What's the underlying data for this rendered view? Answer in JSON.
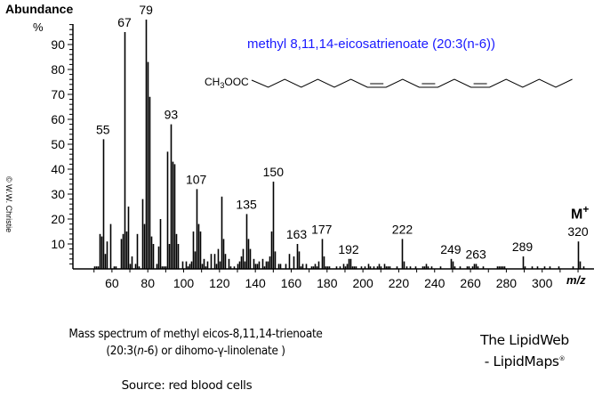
{
  "header": {
    "y_axis_title": "Abundance",
    "y_axis_unit": "%",
    "compound_name": "methyl 8,11,14-eicosatrienoate (20:3(n-6))",
    "structure_label": "CH3OOC",
    "copyright": "© W.W. Christie",
    "molecular_ion_label": "M",
    "molecular_ion_sup": "+"
  },
  "caption": {
    "line1": "Mass spectrum of methyl eicos-8,11,14-trienoate",
    "line2_pre": "(20:3(",
    "line2_italic": "n",
    "line2_post": "-6) or dihomo-γ-linolenate )",
    "source": "Source:  red blood cells"
  },
  "brand": {
    "line1": "The LipidWeb",
    "line2": "- LipidMaps",
    "mark": "®"
  },
  "colors": {
    "title": "#1a1aff",
    "peaks": "#000000"
  },
  "chart_data": {
    "type": "bar",
    "title": "methyl 8,11,14-eicosatrienoate (20:3(n-6))",
    "xlabel": "m/z",
    "ylabel": "Abundance %",
    "xlim": [
      40,
      330
    ],
    "ylim": [
      0,
      100
    ],
    "x_ticks": [
      60,
      80,
      100,
      120,
      140,
      160,
      180,
      200,
      220,
      240,
      260,
      280,
      300
    ],
    "y_ticks": [
      10,
      20,
      30,
      40,
      50,
      60,
      70,
      80,
      90
    ],
    "grid": false,
    "labeled_peaks": [
      55,
      67,
      79,
      93,
      107,
      135,
      150,
      163,
      177,
      192,
      222,
      249,
      263,
      289,
      320
    ],
    "peaks": [
      [
        50,
        1
      ],
      [
        51,
        1
      ],
      [
        52,
        1
      ],
      [
        53,
        14
      ],
      [
        54,
        13
      ],
      [
        55,
        52
      ],
      [
        56,
        6
      ],
      [
        57,
        11
      ],
      [
        59,
        18
      ],
      [
        61,
        1
      ],
      [
        62,
        1
      ],
      [
        65,
        12
      ],
      [
        66,
        14
      ],
      [
        67,
        95
      ],
      [
        68,
        15
      ],
      [
        69,
        25
      ],
      [
        70,
        2
      ],
      [
        71,
        5
      ],
      [
        73,
        2
      ],
      [
        74,
        14
      ],
      [
        75,
        1
      ],
      [
        77,
        28
      ],
      [
        78,
        18
      ],
      [
        79,
        100
      ],
      [
        80,
        83
      ],
      [
        81,
        69
      ],
      [
        82,
        13
      ],
      [
        83,
        10
      ],
      [
        85,
        2
      ],
      [
        86,
        9
      ],
      [
        87,
        20
      ],
      [
        88,
        1
      ],
      [
        89,
        1
      ],
      [
        90,
        1
      ],
      [
        91,
        47
      ],
      [
        92,
        10
      ],
      [
        93,
        58
      ],
      [
        94,
        43
      ],
      [
        95,
        42
      ],
      [
        96,
        14
      ],
      [
        97,
        10
      ],
      [
        99,
        3
      ],
      [
        101,
        3
      ],
      [
        102,
        1
      ],
      [
        103,
        2
      ],
      [
        104,
        3
      ],
      [
        105,
        15
      ],
      [
        106,
        7
      ],
      [
        107,
        32
      ],
      [
        108,
        18
      ],
      [
        109,
        15
      ],
      [
        110,
        2
      ],
      [
        111,
        4
      ],
      [
        112,
        1
      ],
      [
        113,
        3
      ],
      [
        115,
        6
      ],
      [
        117,
        6
      ],
      [
        118,
        2
      ],
      [
        119,
        8
      ],
      [
        120,
        3
      ],
      [
        121,
        29
      ],
      [
        122,
        12
      ],
      [
        123,
        6
      ],
      [
        125,
        4
      ],
      [
        126,
        1
      ],
      [
        128,
        1
      ],
      [
        130,
        2
      ],
      [
        131,
        3
      ],
      [
        132,
        5
      ],
      [
        133,
        8
      ],
      [
        134,
        3
      ],
      [
        135,
        22
      ],
      [
        136,
        12
      ],
      [
        137,
        8
      ],
      [
        139,
        4
      ],
      [
        140,
        2
      ],
      [
        141,
        2
      ],
      [
        142,
        3
      ],
      [
        144,
        4
      ],
      [
        145,
        1
      ],
      [
        146,
        3
      ],
      [
        147,
        3
      ],
      [
        148,
        5
      ],
      [
        149,
        15
      ],
      [
        150,
        35
      ],
      [
        151,
        7
      ],
      [
        153,
        2
      ],
      [
        154,
        2
      ],
      [
        157,
        2
      ],
      [
        159,
        6
      ],
      [
        161,
        5
      ],
      [
        163,
        10
      ],
      [
        164,
        7
      ],
      [
        165,
        1
      ],
      [
        166,
        2
      ],
      [
        168,
        2
      ],
      [
        171,
        1
      ],
      [
        172,
        1
      ],
      [
        173,
        2
      ],
      [
        174,
        1
      ],
      [
        175,
        3
      ],
      [
        177,
        12
      ],
      [
        178,
        5
      ],
      [
        179,
        1
      ],
      [
        180,
        1
      ],
      [
        181,
        1
      ],
      [
        185,
        1
      ],
      [
        187,
        1
      ],
      [
        189,
        2
      ],
      [
        190,
        1
      ],
      [
        191,
        2
      ],
      [
        192,
        4
      ],
      [
        193,
        4
      ],
      [
        194,
        1
      ],
      [
        195,
        1
      ],
      [
        196,
        1
      ],
      [
        199,
        1
      ],
      [
        201,
        1
      ],
      [
        203,
        2
      ],
      [
        204,
        1
      ],
      [
        206,
        1
      ],
      [
        208,
        1
      ],
      [
        209,
        2
      ],
      [
        210,
        1
      ],
      [
        212,
        2
      ],
      [
        213,
        1
      ],
      [
        214,
        1
      ],
      [
        215,
        1
      ],
      [
        219,
        1
      ],
      [
        222,
        12
      ],
      [
        223,
        3
      ],
      [
        224,
        1
      ],
      [
        226,
        1
      ],
      [
        229,
        1
      ],
      [
        233,
        1
      ],
      [
        234,
        1
      ],
      [
        235,
        2
      ],
      [
        236,
        1
      ],
      [
        238,
        1
      ],
      [
        243,
        1
      ],
      [
        249,
        4
      ],
      [
        250,
        3
      ],
      [
        251,
        1
      ],
      [
        254,
        1
      ],
      [
        258,
        1
      ],
      [
        259,
        1
      ],
      [
        261,
        1
      ],
      [
        262,
        2
      ],
      [
        263,
        2
      ],
      [
        264,
        1
      ],
      [
        267,
        1
      ],
      [
        275,
        1
      ],
      [
        276,
        1
      ],
      [
        277,
        1
      ],
      [
        278,
        1
      ],
      [
        279,
        1
      ],
      [
        289,
        5
      ],
      [
        290,
        1
      ],
      [
        294,
        1
      ],
      [
        297,
        1
      ],
      [
        301,
        1
      ],
      [
        304,
        1
      ],
      [
        309,
        1
      ],
      [
        317,
        1
      ],
      [
        320,
        11
      ],
      [
        321,
        3
      ],
      [
        323,
        1
      ]
    ]
  }
}
